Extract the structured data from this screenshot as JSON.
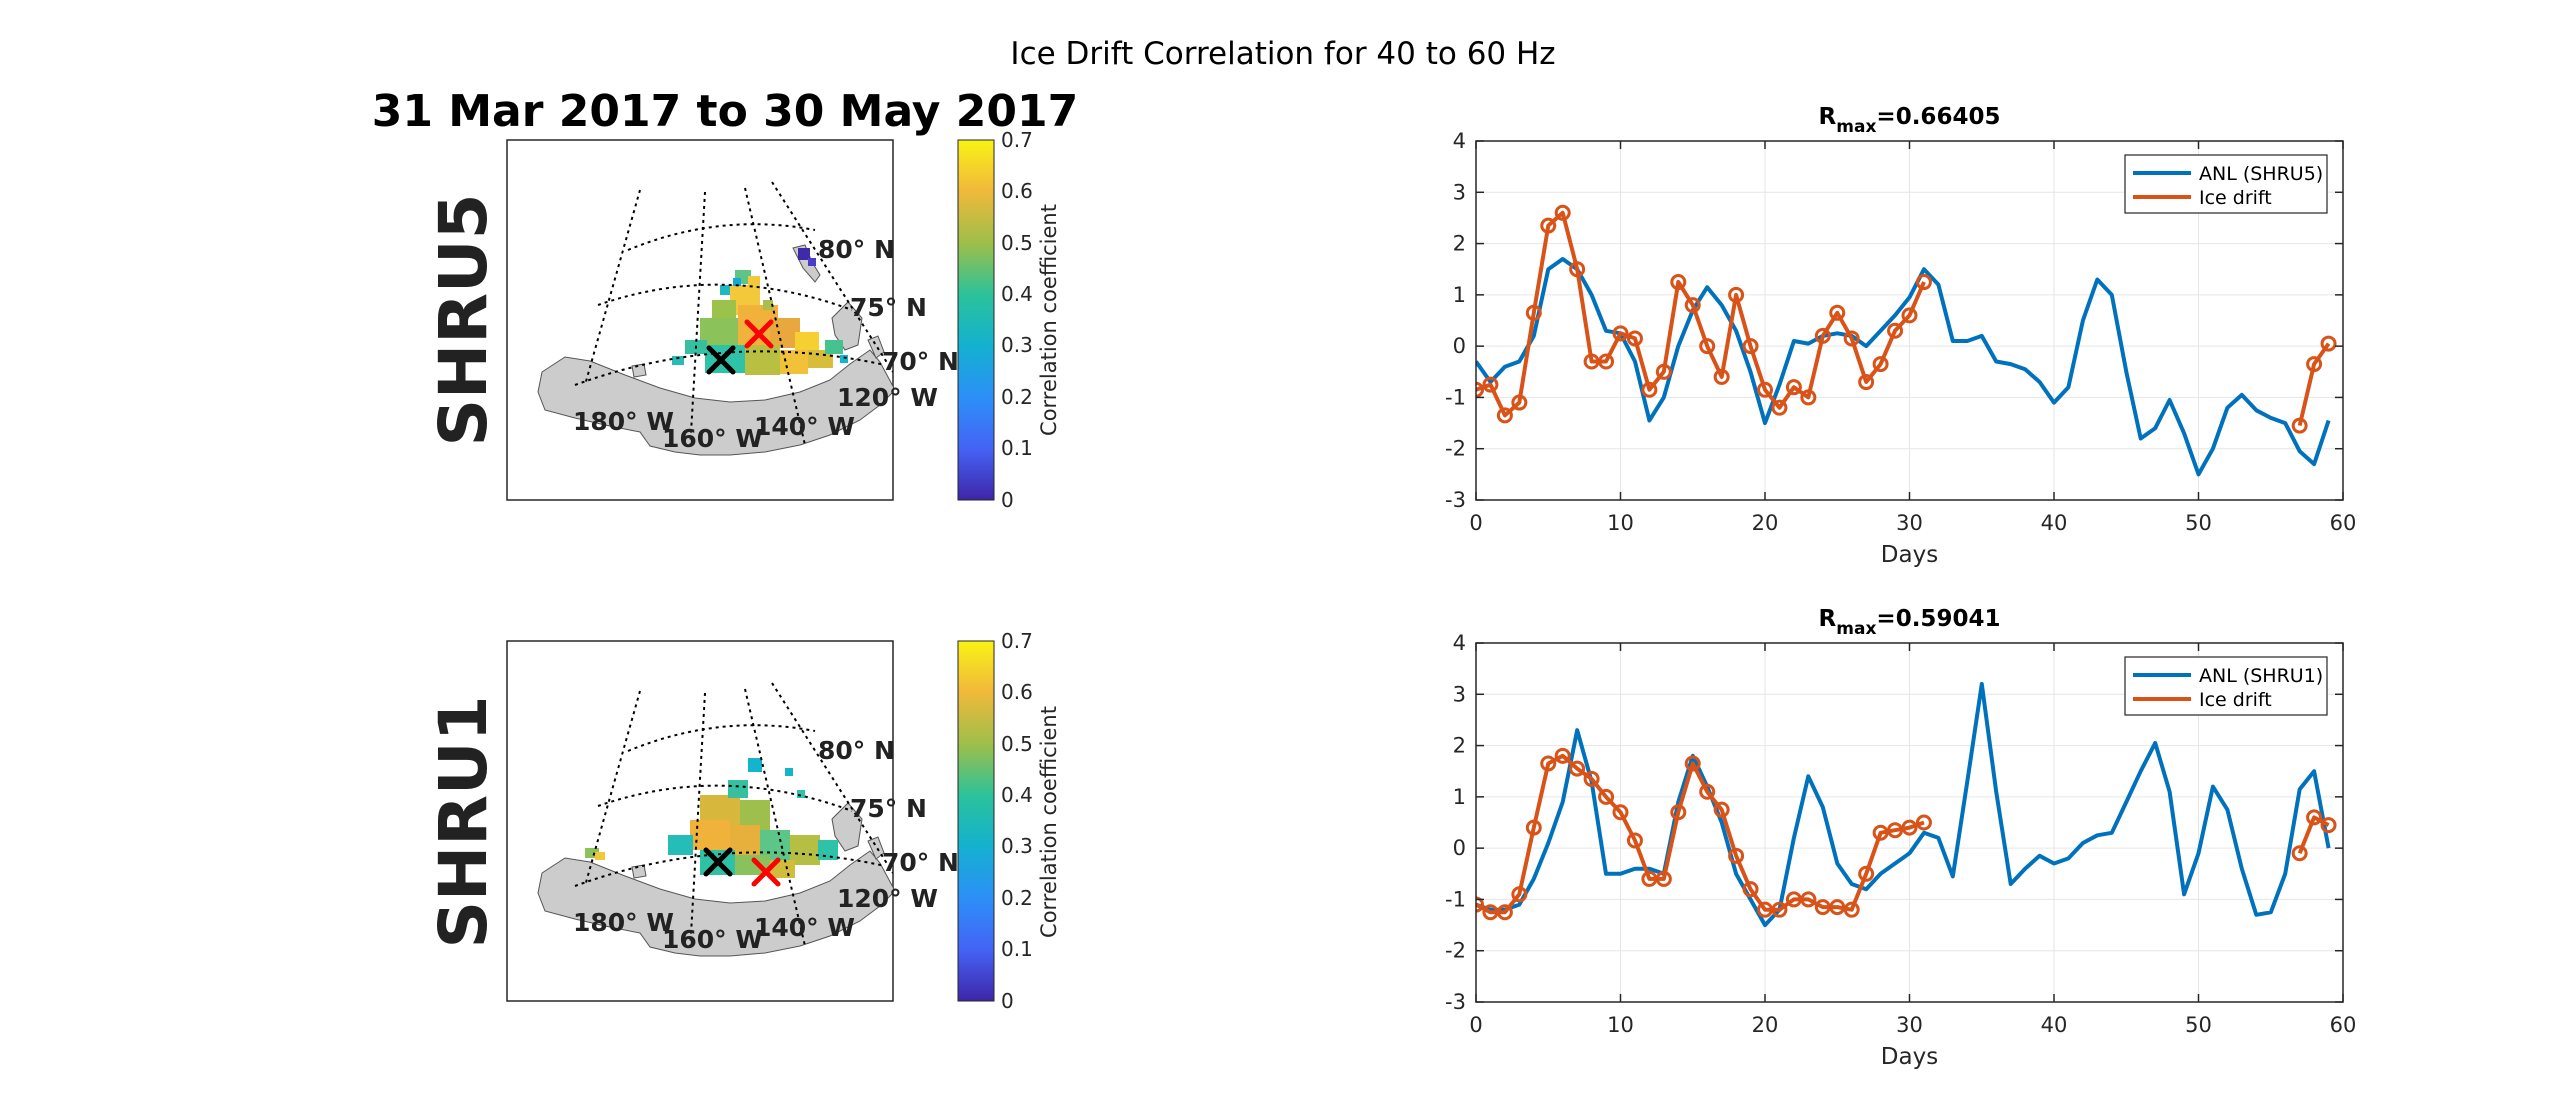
{
  "figure": {
    "suptitle": "Ice Drift Correlation for 40 to 60 Hz",
    "date_range": "31 Mar 2017 to 30 May 2017"
  },
  "maps": [
    {
      "station": "SHRU5",
      "colorbar_label": "Correlation coefficient",
      "colorbar_ticks": [
        "0.7",
        "0.6",
        "0.5",
        "0.4",
        "0.3",
        "0.2",
        "0.1",
        "0"
      ],
      "lat_labels": [
        "80° N",
        "75° N",
        "70° N"
      ],
      "lon_labels": [
        "180° W",
        "160° W",
        "140° W",
        "120° W"
      ],
      "markers": [
        "black-x",
        "red-x"
      ]
    },
    {
      "station": "SHRU1",
      "colorbar_label": "Correlation coefficient",
      "colorbar_ticks": [
        "0.7",
        "0.6",
        "0.5",
        "0.4",
        "0.3",
        "0.2",
        "0.1",
        "0"
      ],
      "lat_labels": [
        "80° N",
        "75° N",
        "70° N"
      ],
      "lon_labels": [
        "180° W",
        "160° W",
        "140° W",
        "120° W"
      ],
      "markers": [
        "black-x",
        "red-x"
      ]
    }
  ],
  "colors": {
    "anl": "#0072BD",
    "ice": "#D95319",
    "land": "#cccccc",
    "red_marker": "#ff0000",
    "black_marker": "#000000"
  },
  "chart_data": [
    {
      "type": "line",
      "title_main": "R",
      "title_sub": "max",
      "title_value": "=0.66405",
      "xlabel": "Days",
      "ylabel": "",
      "xlim": [
        0,
        60
      ],
      "ylim": [
        -3,
        4
      ],
      "xticks": [
        0,
        10,
        20,
        30,
        40,
        50,
        60
      ],
      "yticks": [
        -3,
        -2,
        -1,
        0,
        1,
        2,
        3,
        4
      ],
      "grid": true,
      "legend_position": "top-right",
      "series": [
        {
          "name": "ANL (SHRU5)",
          "color": "#0072BD",
          "marker": "none",
          "x": [
            0,
            1,
            2,
            3,
            4,
            5,
            6,
            7,
            8,
            9,
            10,
            11,
            12,
            13,
            14,
            15,
            16,
            17,
            18,
            19,
            20,
            21,
            22,
            23,
            24,
            25,
            26,
            27,
            28,
            29,
            30,
            31,
            32,
            33,
            34,
            35,
            36,
            37,
            38,
            39,
            40,
            41,
            42,
            43,
            44,
            45,
            46,
            47,
            48,
            49,
            50,
            51,
            52,
            53,
            54,
            55,
            56,
            57,
            58,
            59
          ],
          "y": [
            -0.3,
            -0.7,
            -0.4,
            -0.3,
            0.2,
            1.5,
            1.7,
            1.5,
            1.0,
            0.3,
            0.25,
            -0.3,
            -1.45,
            -1.0,
            0.0,
            0.7,
            1.15,
            0.8,
            0.3,
            -0.5,
            -1.5,
            -0.75,
            0.1,
            0.05,
            0.2,
            0.25,
            0.2,
            0.0,
            0.3,
            0.6,
            0.95,
            1.5,
            1.2,
            0.1,
            0.1,
            0.2,
            -0.3,
            -0.35,
            -0.45,
            -0.7,
            -1.1,
            -0.8,
            0.5,
            1.3,
            1.0,
            -0.5,
            -1.8,
            -1.6,
            -1.05,
            -1.7,
            -2.5,
            -2.0,
            -1.2,
            -0.95,
            -1.25,
            -1.4,
            -1.5,
            -2.05,
            -2.3,
            -1.45
          ]
        },
        {
          "name": "Ice drift",
          "color": "#D95319",
          "marker": "o",
          "x": [
            0,
            1,
            2,
            3,
            4,
            5,
            6,
            7,
            8,
            9,
            10,
            11,
            12,
            13,
            14,
            15,
            16,
            17,
            18,
            19,
            20,
            21,
            22,
            23,
            24,
            25,
            26,
            27,
            28,
            29,
            30,
            31,
            57,
            58,
            59
          ],
          "y": [
            -0.85,
            -0.75,
            -1.35,
            -1.1,
            0.65,
            2.35,
            2.6,
            1.5,
            -0.3,
            -0.3,
            0.25,
            0.15,
            -0.85,
            -0.5,
            1.25,
            0.8,
            0.0,
            -0.6,
            1.0,
            0.0,
            -0.85,
            -1.2,
            -0.8,
            -1.0,
            0.2,
            0.65,
            0.15,
            -0.7,
            -0.35,
            0.3,
            0.6,
            1.25,
            -1.55,
            -0.35,
            0.05
          ]
        }
      ]
    },
    {
      "type": "line",
      "title_main": "R",
      "title_sub": "max",
      "title_value": "=0.59041",
      "xlabel": "Days",
      "ylabel": "",
      "xlim": [
        0,
        60
      ],
      "ylim": [
        -3,
        4
      ],
      "xticks": [
        0,
        10,
        20,
        30,
        40,
        50,
        60
      ],
      "yticks": [
        -3,
        -2,
        -1,
        0,
        1,
        2,
        3,
        4
      ],
      "grid": true,
      "legend_position": "top-right",
      "series": [
        {
          "name": "ANL (SHRU1)",
          "color": "#0072BD",
          "marker": "none",
          "x": [
            0,
            1,
            2,
            3,
            4,
            5,
            6,
            7,
            8,
            9,
            10,
            11,
            12,
            13,
            14,
            15,
            16,
            17,
            18,
            19,
            20,
            21,
            22,
            23,
            24,
            25,
            26,
            27,
            28,
            29,
            30,
            31,
            32,
            33,
            34,
            35,
            36,
            37,
            38,
            39,
            40,
            41,
            42,
            43,
            44,
            45,
            46,
            47,
            48,
            49,
            50,
            51,
            52,
            53,
            54,
            55,
            56,
            57,
            58,
            59
          ],
          "y": [
            -1.1,
            -1.2,
            -1.2,
            -1.1,
            -0.6,
            0.1,
            0.9,
            2.3,
            1.3,
            -0.5,
            -0.5,
            -0.4,
            -0.4,
            -0.5,
            0.9,
            1.8,
            1.2,
            0.5,
            -0.5,
            -1.0,
            -1.5,
            -1.2,
            0.2,
            1.4,
            0.8,
            -0.3,
            -0.7,
            -0.8,
            -0.5,
            -0.3,
            -0.1,
            0.3,
            0.2,
            -0.55,
            1.3,
            3.2,
            1.1,
            -0.7,
            -0.4,
            -0.15,
            -0.3,
            -0.2,
            0.1,
            0.25,
            0.3,
            0.9,
            1.5,
            2.05,
            1.1,
            -0.9,
            -0.1,
            1.2,
            0.75,
            -0.4,
            -1.3,
            -1.25,
            -0.5,
            1.15,
            1.5,
            0.0
          ]
        },
        {
          "name": "Ice drift",
          "color": "#D95319",
          "marker": "o",
          "x": [
            0,
            1,
            2,
            3,
            4,
            5,
            6,
            7,
            8,
            9,
            10,
            11,
            12,
            13,
            14,
            15,
            16,
            17,
            18,
            19,
            20,
            21,
            22,
            23,
            24,
            25,
            26,
            27,
            28,
            29,
            30,
            31,
            57,
            58,
            59
          ],
          "y": [
            -1.1,
            -1.25,
            -1.25,
            -0.9,
            0.4,
            1.65,
            1.8,
            1.55,
            1.35,
            1.0,
            0.7,
            0.15,
            -0.6,
            -0.6,
            0.7,
            1.65,
            1.1,
            0.75,
            -0.15,
            -0.8,
            -1.2,
            -1.2,
            -1.0,
            -1.0,
            -1.15,
            -1.15,
            -1.2,
            -0.5,
            0.3,
            0.35,
            0.4,
            0.5,
            -0.1,
            0.6,
            0.45
          ]
        }
      ]
    }
  ]
}
